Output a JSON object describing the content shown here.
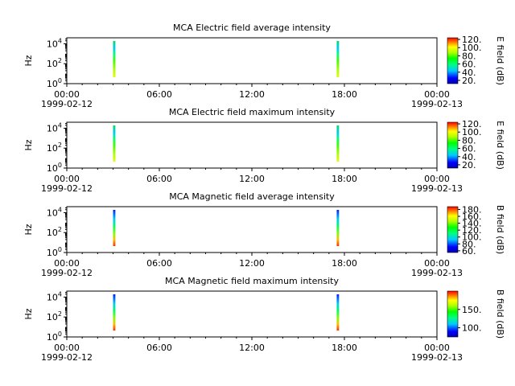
{
  "chart_data": [
    {
      "type": "heatmap",
      "title": "MCA  Electric field average intensity",
      "ylabel": "Hz",
      "y_ticks": [
        {
          "base": "10",
          "exp": "0"
        },
        {
          "base": "10",
          "exp": "2"
        },
        {
          "base": "10",
          "exp": "4"
        }
      ],
      "y_scale": "log",
      "x_ticks": [
        "00:00",
        "06:00",
        "12:00",
        "18:00",
        "00:00"
      ],
      "x_dates": [
        "1999-02-12",
        "",
        "",
        "",
        "1999-02-13"
      ],
      "colorbar_label": "E field (dB)",
      "colorbar_ticks": [
        "20.",
        "40.",
        "60.",
        "80.",
        "100.",
        "120."
      ],
      "colorbar_range": [
        12,
        124
      ],
      "bursts": [
        {
          "start": "03:00",
          "end": "03:09"
        },
        {
          "start": "17:30",
          "end": "17:39"
        }
      ]
    },
    {
      "type": "heatmap",
      "title": "MCA  Electric field maximum intensity",
      "ylabel": "Hz",
      "y_ticks": [
        {
          "base": "10",
          "exp": "0"
        },
        {
          "base": "10",
          "exp": "2"
        },
        {
          "base": "10",
          "exp": "4"
        }
      ],
      "y_scale": "log",
      "x_ticks": [
        "00:00",
        "06:00",
        "12:00",
        "18:00",
        "00:00"
      ],
      "x_dates": [
        "1999-02-12",
        "",
        "",
        "",
        "1999-02-13"
      ],
      "colorbar_label": "E field (dB)",
      "colorbar_ticks": [
        "20.",
        "40.",
        "60.",
        "80.",
        "100.",
        "120."
      ],
      "colorbar_range": [
        12,
        124
      ],
      "bursts": [
        {
          "start": "03:00",
          "end": "03:09"
        },
        {
          "start": "17:30",
          "end": "17:39"
        }
      ]
    },
    {
      "type": "heatmap",
      "title": "MCA  Magnetic field average intensity",
      "ylabel": "Hz",
      "y_ticks": [
        {
          "base": "10",
          "exp": "0"
        },
        {
          "base": "10",
          "exp": "2"
        },
        {
          "base": "10",
          "exp": "4"
        }
      ],
      "y_scale": "log",
      "x_ticks": [
        "00:00",
        "06:00",
        "12:00",
        "18:00",
        "00:00"
      ],
      "x_dates": [
        "1999-02-12",
        "",
        "",
        "",
        "1999-02-13"
      ],
      "colorbar_label": "B field (dB)",
      "colorbar_ticks": [
        "60.",
        "80.",
        "100.",
        "120.",
        "140.",
        "160.",
        "180."
      ],
      "colorbar_range": [
        55,
        188
      ],
      "bursts": [
        {
          "start": "03:00",
          "end": "03:09"
        },
        {
          "start": "17:30",
          "end": "17:39"
        }
      ]
    },
    {
      "type": "heatmap",
      "title": "MCA  Magnetic field maximum intensity",
      "ylabel": "Hz",
      "y_ticks": [
        {
          "base": "10",
          "exp": "0"
        },
        {
          "base": "10",
          "exp": "2"
        },
        {
          "base": "10",
          "exp": "4"
        }
      ],
      "y_scale": "log",
      "x_ticks": [
        "00:00",
        "06:00",
        "12:00",
        "18:00",
        "00:00"
      ],
      "x_dates": [
        "1999-02-12",
        "",
        "",
        "",
        "1999-02-13"
      ],
      "colorbar_label": "B field (dB)",
      "colorbar_ticks": [
        "100.",
        "150."
      ],
      "colorbar_range": [
        75,
        200
      ],
      "bursts": [
        {
          "start": "03:00",
          "end": "03:09"
        },
        {
          "start": "17:30",
          "end": "17:39"
        }
      ]
    }
  ]
}
